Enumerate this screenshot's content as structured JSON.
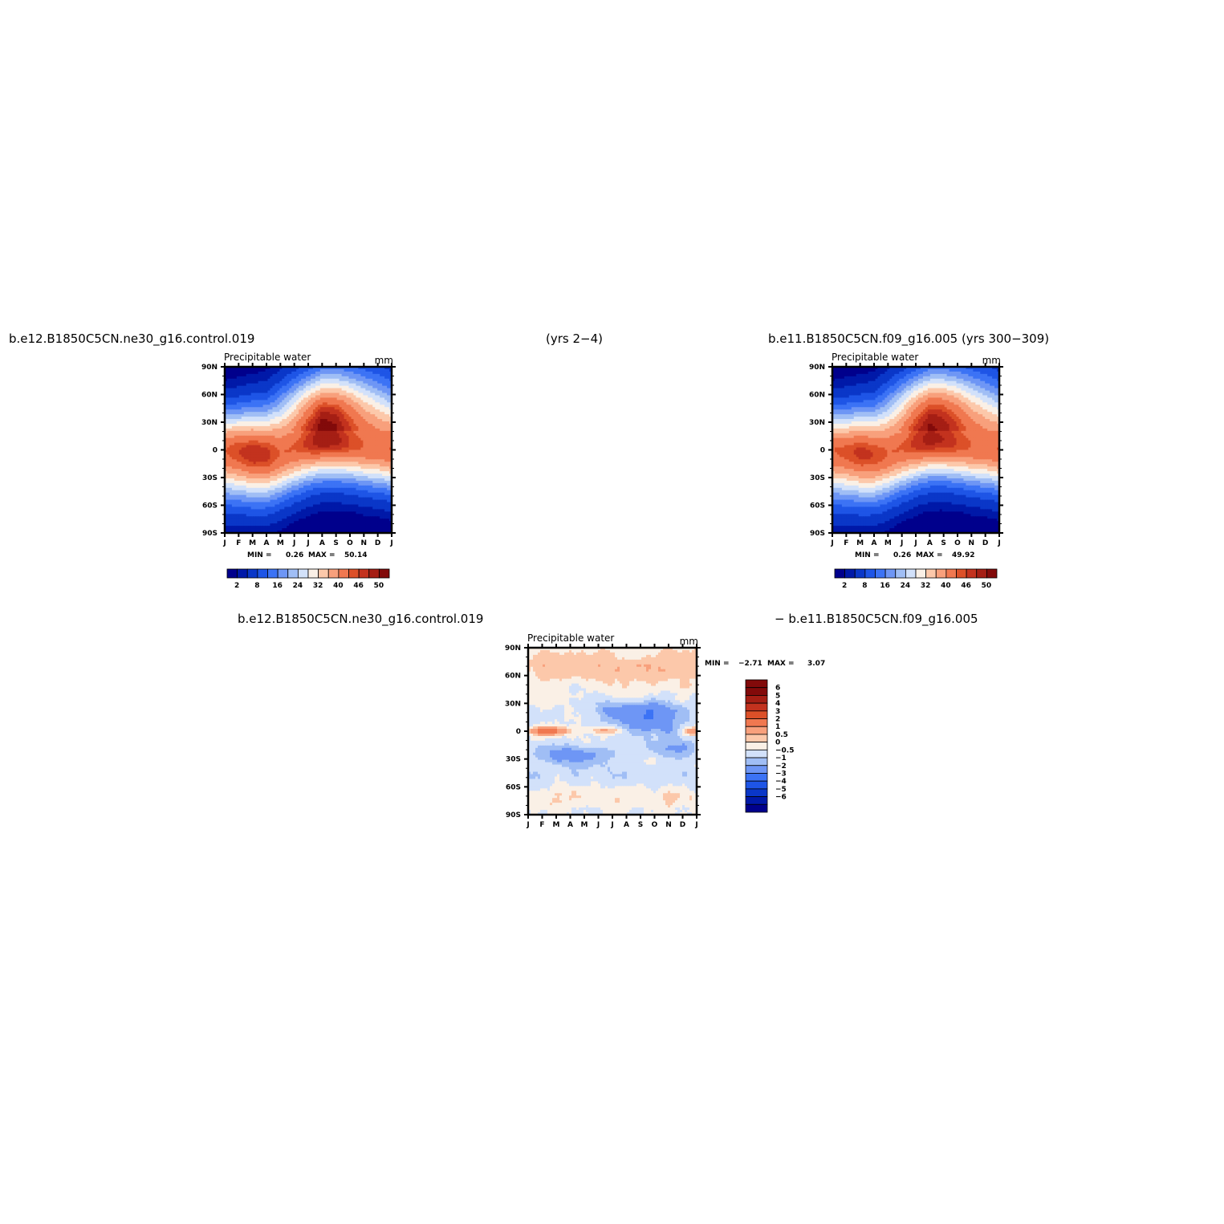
{
  "headers": {
    "top_left": "b.e12.B1850C5CN.ne30_g16.control.019",
    "top_mid": "(yrs 2−4)",
    "top_right": "b.e11.B1850C5CN.f09_g16.005 (yrs 300−309)",
    "bottom_left": "b.e12.B1850C5CN.ne30_g16.control.019",
    "bottom_right": "− b.e11.B1850C5CN.f09_g16.005"
  },
  "chart_data": [
    {
      "type": "heatmap",
      "title": "Precipitable water",
      "units": "mm",
      "x_ticks": [
        "J",
        "F",
        "M",
        "A",
        "M",
        "J",
        "J",
        "A",
        "S",
        "O",
        "N",
        "D",
        "J"
      ],
      "y_ticks": [
        "90N",
        "60N",
        "30N",
        "0",
        "30S",
        "60S",
        "90S"
      ],
      "stats": {
        "min_label": "MIN =",
        "min": "0.26",
        "max_label": "MAX =",
        "max": "50.14"
      },
      "colorbar_ticks": [
        "2",
        "8",
        "16",
        "24",
        "32",
        "40",
        "46",
        "50"
      ],
      "colorbar_colors": [
        "#00008c",
        "#0019a8",
        "#0a37c8",
        "#1e55e6",
        "#3c73f5",
        "#6e96f5",
        "#a0bef5",
        "#d2e1fa",
        "#faf0e6",
        "#fcc8aa",
        "#f8a07c",
        "#f07850",
        "#dc5028",
        "#c3321e",
        "#a51e14",
        "#820a0a"
      ],
      "levels": [
        2,
        4,
        8,
        12,
        16,
        20,
        24,
        28,
        32,
        36,
        40,
        44,
        46,
        48,
        50
      ],
      "range": [
        0.26,
        50.14
      ],
      "peak_lat": [
        0,
        -2,
        -4,
        -6,
        -4,
        2,
        8,
        12,
        11,
        8,
        4,
        2,
        0
      ],
      "peak_value": [
        44,
        46,
        48,
        47,
        44,
        44,
        47,
        50,
        49,
        46,
        44,
        43,
        44
      ],
      "width_factor": [
        1.0,
        1.0,
        1.0,
        1.0,
        1.0,
        1.0,
        1.0,
        1.0,
        1.0,
        1.0,
        1.0,
        1.0,
        1.0
      ]
    },
    {
      "type": "heatmap",
      "title": "Precipitable water",
      "units": "mm",
      "x_ticks": [
        "J",
        "F",
        "M",
        "A",
        "M",
        "J",
        "J",
        "A",
        "S",
        "O",
        "N",
        "D",
        "J"
      ],
      "y_ticks": [
        "90N",
        "60N",
        "30N",
        "0",
        "30S",
        "60S",
        "90S"
      ],
      "stats": {
        "min_label": "MIN =",
        "min": "0.26",
        "max_label": "MAX =",
        "max": "49.92"
      },
      "colorbar_ticks": [
        "2",
        "8",
        "16",
        "24",
        "32",
        "40",
        "46",
        "50"
      ],
      "colorbar_colors": [
        "#00008c",
        "#0019a8",
        "#0a37c8",
        "#1e55e6",
        "#3c73f5",
        "#6e96f5",
        "#a0bef5",
        "#d2e1fa",
        "#faf0e6",
        "#fcc8aa",
        "#f8a07c",
        "#f07850",
        "#dc5028",
        "#c3321e",
        "#a51e14",
        "#820a0a"
      ],
      "levels": [
        2,
        4,
        8,
        12,
        16,
        20,
        24,
        28,
        32,
        36,
        40,
        44,
        46,
        48,
        50
      ],
      "range": [
        0.26,
        49.92
      ],
      "peak_lat": [
        0,
        -2,
        -4,
        -6,
        -4,
        2,
        8,
        12,
        11,
        8,
        4,
        2,
        0
      ],
      "peak_value": [
        44,
        45,
        47,
        46,
        44,
        44,
        47,
        49,
        48,
        46,
        44,
        43,
        44
      ],
      "width_factor": [
        1.0,
        1.0,
        1.0,
        1.0,
        1.0,
        1.0,
        1.0,
        1.0,
        1.0,
        1.0,
        1.0,
        1.0,
        1.0
      ]
    },
    {
      "type": "heatmap",
      "title": "Precipitable water",
      "units": "mm",
      "x_ticks": [
        "J",
        "F",
        "M",
        "A",
        "M",
        "J",
        "J",
        "A",
        "S",
        "O",
        "N",
        "D",
        "J"
      ],
      "y_ticks": [
        "90N",
        "60N",
        "30N",
        "0",
        "30S",
        "60S",
        "90S"
      ],
      "stats": {
        "min_label": "MIN =",
        "min": "−2.71",
        "max_label": "MAX =",
        "max": "3.07"
      },
      "colorbar_ticks": [
        "6",
        "5",
        "4",
        "3",
        "2",
        "1",
        "0.5",
        "0",
        "−0.5",
        "−1",
        "−2",
        "−3",
        "−4",
        "−5",
        "−6"
      ],
      "colorbar_colors": [
        "#820a0a",
        "#a51e14",
        "#c3321e",
        "#dc5028",
        "#f07850",
        "#f8a07c",
        "#fcc8aa",
        "#faf0e6",
        "#d2e1fa",
        "#a0bef5",
        "#6e96f5",
        "#3c73f5",
        "#1e55e6",
        "#0a37c8",
        "#0019a8",
        "#00008c"
      ],
      "levels": [
        -6,
        -5,
        -4,
        -3,
        -2,
        -1,
        -0.5,
        0,
        0.5,
        1,
        2,
        3,
        4,
        5,
        6
      ],
      "range": [
        -2.71,
        3.07
      ]
    }
  ]
}
